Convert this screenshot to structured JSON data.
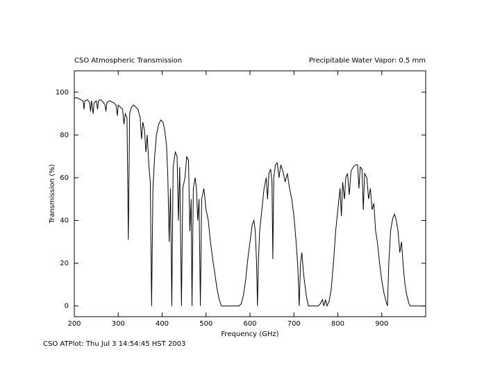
{
  "chart_data": {
    "type": "line",
    "title": "CSO Atmospheric Transmission",
    "subtitle": "Precipitable Water Vapor: 0.5 mm",
    "x_label": "Frequency (GHz)",
    "y_label": "Transmission (%)",
    "footer": "CSO ATPlot: Thu Jul  3 14:54:45 HST 2003",
    "xlim": [
      200,
      1000
    ],
    "ylim": [
      -5,
      110
    ],
    "xticks": [
      200,
      300,
      400,
      500,
      600,
      700,
      800,
      900
    ],
    "yticks": [
      0,
      20,
      40,
      60,
      80,
      100
    ],
    "grid": false,
    "color": "#000000",
    "x": [
      200,
      205,
      210,
      215,
      220,
      222,
      224,
      230,
      235,
      237,
      239,
      243,
      245,
      250,
      253,
      255,
      260,
      265,
      270,
      272,
      274,
      280,
      285,
      290,
      295,
      298,
      300,
      305,
      310,
      313,
      316,
      320,
      323,
      326,
      330,
      335,
      340,
      345,
      350,
      353,
      356,
      360,
      363,
      366,
      370,
      373,
      376,
      379,
      383,
      387,
      392,
      397,
      402,
      406,
      410,
      413,
      416,
      419,
      422,
      425,
      430,
      434,
      437,
      440,
      444,
      447,
      452,
      456,
      460,
      463,
      466,
      468,
      471,
      475,
      478,
      481,
      484,
      487,
      490,
      495,
      500,
      505,
      510,
      515,
      520,
      525,
      530,
      535,
      545,
      560,
      575,
      580,
      585,
      590,
      595,
      600,
      605,
      609,
      612,
      615,
      617,
      619,
      622,
      627,
      632,
      637,
      640,
      643,
      647,
      650,
      652,
      654,
      658,
      662,
      666,
      670,
      675,
      680,
      685,
      690,
      695,
      700,
      705,
      709,
      712,
      715,
      718,
      722,
      728,
      733,
      745,
      755,
      760,
      765,
      768,
      772,
      775,
      780,
      785,
      790,
      795,
      800,
      805,
      808,
      811,
      815,
      818,
      822,
      826,
      830,
      835,
      840,
      845,
      848,
      851,
      855,
      858,
      861,
      866,
      870,
      874,
      878,
      882,
      886,
      890,
      895,
      900,
      905,
      910,
      913,
      916,
      920,
      925,
      929,
      933,
      937,
      941,
      945,
      949,
      953,
      957,
      962,
      965,
      1000
    ],
    "values": [
      97,
      97.5,
      97,
      96.5,
      96,
      92,
      96,
      96.5,
      95,
      91,
      96,
      90,
      95,
      96,
      92,
      96,
      96.5,
      95.5,
      94,
      91,
      95,
      96,
      95.5,
      95,
      94,
      89,
      94,
      93,
      92,
      85,
      90,
      88,
      31,
      90,
      93,
      94,
      93,
      92,
      88,
      78,
      86,
      82,
      72,
      80,
      65,
      58,
      0,
      55,
      70,
      80,
      85,
      87,
      86,
      82,
      75,
      60,
      30,
      55,
      0,
      65,
      72,
      70,
      40,
      65,
      0,
      55,
      60,
      70,
      68,
      35,
      50,
      0,
      55,
      60,
      55,
      40,
      50,
      0,
      50,
      55,
      45,
      40,
      30,
      22,
      15,
      8,
      3,
      0,
      0,
      0,
      0,
      1,
      5,
      12,
      22,
      30,
      38,
      40,
      35,
      20,
      0,
      20,
      35,
      45,
      55,
      60,
      50,
      62,
      64,
      58,
      22,
      60,
      66,
      67,
      60,
      66,
      63,
      58,
      62,
      55,
      50,
      42,
      30,
      18,
      0,
      20,
      25,
      15,
      5,
      0,
      0,
      0,
      1,
      3,
      0,
      3,
      0,
      2,
      8,
      20,
      35,
      45,
      55,
      42,
      58,
      50,
      60,
      62,
      52,
      63,
      65,
      66,
      66,
      55,
      65,
      64,
      45,
      62,
      60,
      50,
      55,
      45,
      48,
      35,
      30,
      20,
      12,
      6,
      2,
      0,
      20,
      35,
      41,
      43,
      40,
      35,
      25,
      30,
      18,
      10,
      5,
      1,
      0,
      0
    ]
  }
}
